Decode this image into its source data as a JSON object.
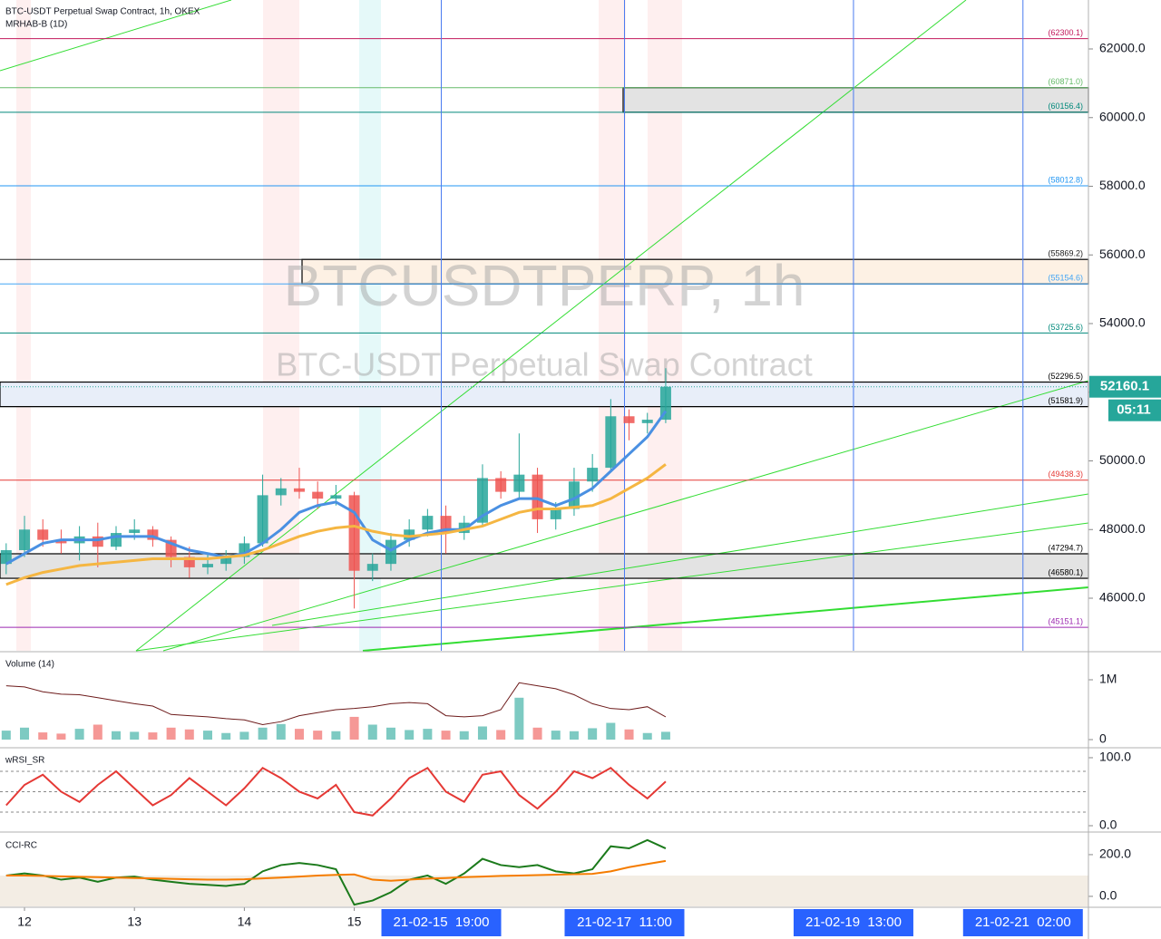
{
  "chart_data": [
    {
      "type": "candlestick",
      "title": "BTC-USDT Perpetual Swap Contract, 1h, OKEX",
      "subtitle": "MRHAB-B (1D)",
      "watermark": "BTCUSDTPERP, 1h",
      "watermark_subtitle": "BTC-USDT Perpetual Swap Contract",
      "x": [
        "21-02-11 20:00",
        "21-02-12 00:00",
        "21-02-12 04:00",
        "21-02-12 08:00",
        "21-02-12 12:00",
        "21-02-12 16:00",
        "21-02-12 20:00",
        "21-02-13 00:00",
        "21-02-13 04:00",
        "21-02-13 08:00",
        "21-02-13 12:00",
        "21-02-13 16:00",
        "21-02-13 20:00",
        "21-02-14 00:00",
        "21-02-14 04:00",
        "21-02-14 08:00",
        "21-02-14 12:00",
        "21-02-14 16:00",
        "21-02-14 20:00",
        "21-02-15 00:00",
        "21-02-15 04:00",
        "21-02-15 08:00",
        "21-02-15 12:00",
        "21-02-15 16:00",
        "21-02-15 20:00",
        "21-02-16 00:00",
        "21-02-16 04:00",
        "21-02-16 08:00",
        "21-02-16 12:00",
        "21-02-16 16:00",
        "21-02-16 20:00",
        "21-02-17 00:00",
        "21-02-17 04:00",
        "21-02-17 08:00",
        "21-02-17 12:00",
        "21-02-17 16:00",
        "21-02-17 20:00"
      ],
      "open": [
        47000,
        47400,
        48000,
        47700,
        47600,
        47800,
        47500,
        47900,
        48000,
        47700,
        47200,
        46900,
        47000,
        47200,
        47600,
        49000,
        49200,
        49100,
        48900,
        49000,
        46800,
        47000,
        47700,
        48000,
        48400,
        47900,
        48200,
        49500,
        49100,
        49600,
        48300,
        48600,
        49400,
        49800,
        51300,
        51100,
        51200
      ],
      "high": [
        47600,
        48400,
        48300,
        48000,
        48100,
        48200,
        48100,
        48300,
        48100,
        47800,
        47500,
        47300,
        47400,
        47800,
        49600,
        49500,
        49800,
        49400,
        49300,
        49100,
        47300,
        47900,
        48300,
        48600,
        48700,
        48400,
        49900,
        49700,
        50800,
        49800,
        48800,
        49800,
        50200,
        51800,
        51500,
        51400,
        52700
      ],
      "low": [
        46700,
        47200,
        47500,
        47300,
        47100,
        46900,
        47400,
        47700,
        47500,
        46900,
        46600,
        46700,
        46800,
        47000,
        47500,
        48700,
        48900,
        48600,
        48700,
        45700,
        46500,
        46800,
        47500,
        47800,
        47300,
        47700,
        48100,
        48900,
        48900,
        47900,
        48000,
        48400,
        49100,
        49700,
        50600,
        50800,
        51100
      ],
      "close": [
        47400,
        48000,
        47700,
        47600,
        47800,
        47500,
        47900,
        48000,
        47700,
        47200,
        46900,
        47000,
        47200,
        47600,
        49000,
        49200,
        49100,
        48900,
        49000,
        46800,
        47000,
        47700,
        48000,
        48400,
        47900,
        48200,
        49500,
        49100,
        49600,
        48300,
        48600,
        49400,
        49800,
        51300,
        51100,
        51200,
        52160.1
      ],
      "up_color": "#26a69a",
      "down_color": "#ef5350",
      "series": [
        {
          "color": "#4a90e2",
          "values": [
            47000,
            47300,
            47600,
            47700,
            47700,
            47700,
            47800,
            47800,
            47800,
            47600,
            47400,
            47300,
            47200,
            47300,
            47600,
            48000,
            48500,
            48700,
            48800,
            48500,
            47700,
            47400,
            47700,
            47900,
            48000,
            48000,
            48400,
            48700,
            48900,
            48900,
            48700,
            48900,
            49200,
            49700,
            50200,
            50700,
            51450
          ]
        },
        {
          "color": "#f5b642",
          "values": [
            46400,
            46600,
            46750,
            46850,
            46950,
            47000,
            47050,
            47100,
            47150,
            47150,
            47150,
            47150,
            47200,
            47250,
            47400,
            47600,
            47800,
            47950,
            48050,
            48100,
            47950,
            47850,
            47800,
            47850,
            47900,
            48000,
            48100,
            48300,
            48500,
            48600,
            48600,
            48650,
            48700,
            48900,
            49200,
            49500,
            49900
          ]
        }
      ],
      "levels": {
        "values": [
          62300.1,
          60871.0,
          60156.4,
          58012.8,
          55869.2,
          55154.6,
          53725.6,
          52296.5,
          51581.9,
          49438.3,
          47294.7,
          46580.1,
          45151.1
        ],
        "value_labels": [
          "(62300.1)",
          "(60871.0)",
          "(60156.4)",
          "(58012.8)",
          "(55869.2)",
          "(55154.6)",
          "(53725.6)",
          "(52296.5)",
          "(51581.9)",
          "(49438.3)",
          "(47294.7)",
          "(46580.1)",
          "(45151.1)"
        ],
        "colors": [
          "#c2185b",
          "#66bb6a",
          "#00897b",
          "#2196f3",
          "#212121",
          "#42a5f5",
          "#00897b",
          "#000000",
          "#000000",
          "#e53935",
          "#000000",
          "#000000",
          "#9c27b0"
        ]
      },
      "last_price": 52160.1,
      "countdown": "05:11",
      "xlim": [
        "21-02-11 18:39",
        "21-02-21 16:18"
      ],
      "xticks": [
        {
          "value": "21-02-12 00:00",
          "label": "12"
        },
        {
          "value": "21-02-13 00:00",
          "label": "13"
        },
        {
          "value": "21-02-14 00:00",
          "label": "14"
        },
        {
          "value": "21-02-15 00:00",
          "label": "15"
        }
      ],
      "xmarkers": [
        {
          "value": "21-02-15 19:00",
          "label": "21-02-15  19:00"
        },
        {
          "value": "21-02-17 11:00",
          "label": "21-02-17  11:00"
        },
        {
          "value": "21-02-19 13:00",
          "label": "21-02-19  13:00"
        },
        {
          "value": "21-02-21 02:00",
          "label": "21-02-21  02:00"
        }
      ],
      "ylim": [
        44469,
        63426
      ],
      "yticks": [
        {
          "value": 62000,
          "label": "62000.0"
        },
        {
          "value": 60000,
          "label": "60000.0"
        },
        {
          "value": 58000,
          "label": "58000.0"
        },
        {
          "value": 56000,
          "label": "56000.0"
        },
        {
          "value": 54000,
          "label": "54000.0"
        },
        {
          "value": 52000,
          "label": "52000.0"
        },
        {
          "value": 50000,
          "label": "50000.0"
        },
        {
          "value": 48000,
          "label": "48000.0"
        },
        {
          "value": 46000,
          "label": "46000.0"
        }
      ]
    },
    {
      "type": "bar",
      "title": "Volume (14)",
      "values": [
        150000,
        200000,
        120000,
        100000,
        180000,
        250000,
        140000,
        130000,
        120000,
        200000,
        170000,
        150000,
        110000,
        130000,
        200000,
        260000,
        180000,
        150000,
        140000,
        380000,
        250000,
        200000,
        160000,
        180000,
        150000,
        140000,
        220000,
        160000,
        700000,
        200000,
        150000,
        140000,
        190000,
        280000,
        170000,
        110000,
        130000
      ],
      "line": {
        "color": "#6d1b1b",
        "values": [
          900000,
          880000,
          800000,
          760000,
          750000,
          700000,
          650000,
          600000,
          560000,
          420000,
          400000,
          380000,
          350000,
          330000,
          250000,
          300000,
          400000,
          450000,
          500000,
          520000,
          550000,
          600000,
          620000,
          600000,
          400000,
          380000,
          400000,
          500000,
          950000,
          900000,
          850000,
          750000,
          600000,
          520000,
          500000,
          550000,
          380000
        ]
      },
      "ylim": [
        -121212,
        1454545
      ],
      "yticks": [
        {
          "value": 1000000,
          "label": "1M"
        },
        0
      ]
    },
    {
      "type": "line",
      "title": "wRSI_SR",
      "series": [
        {
          "color": "#e53935",
          "values": [
            30,
            60,
            75,
            50,
            35,
            60,
            80,
            55,
            30,
            45,
            70,
            50,
            30,
            55,
            85,
            70,
            50,
            40,
            60,
            20,
            15,
            40,
            70,
            85,
            50,
            35,
            75,
            80,
            45,
            25,
            50,
            80,
            70,
            85,
            60,
            40,
            65
          ]
        }
      ],
      "levels": [
        80,
        50,
        20
      ],
      "ylim": [
        -8,
        113.3
      ],
      "yticks": [
        {
          "value": 100,
          "label": "100.0"
        },
        {
          "value": 0,
          "label": "0.0"
        }
      ]
    },
    {
      "type": "line",
      "title": "CCI-RC",
      "series": [
        {
          "color": "#1b7a1b",
          "values": [
            100,
            110,
            100,
            80,
            90,
            70,
            90,
            95,
            80,
            70,
            60,
            55,
            50,
            60,
            120,
            150,
            160,
            150,
            130,
            -40,
            -20,
            20,
            80,
            100,
            60,
            110,
            180,
            150,
            140,
            150,
            120,
            110,
            130,
            240,
            230,
            270,
            230
          ]
        },
        {
          "color": "#f57c00",
          "values": [
            100,
            100,
            98,
            96,
            94,
            92,
            90,
            88,
            86,
            84,
            82,
            80,
            80,
            82,
            86,
            90,
            95,
            100,
            103,
            105,
            80,
            75,
            80,
            85,
            88,
            92,
            95,
            98,
            100,
            102,
            104,
            106,
            108,
            120,
            140,
            155,
            170
          ]
        }
      ],
      "ylim": [
        -48,
        304
      ],
      "yticks": [
        {
          "value": 200,
          "label": "200.0"
        },
        {
          "value": 0,
          "label": "0.0"
        }
      ]
    }
  ]
}
